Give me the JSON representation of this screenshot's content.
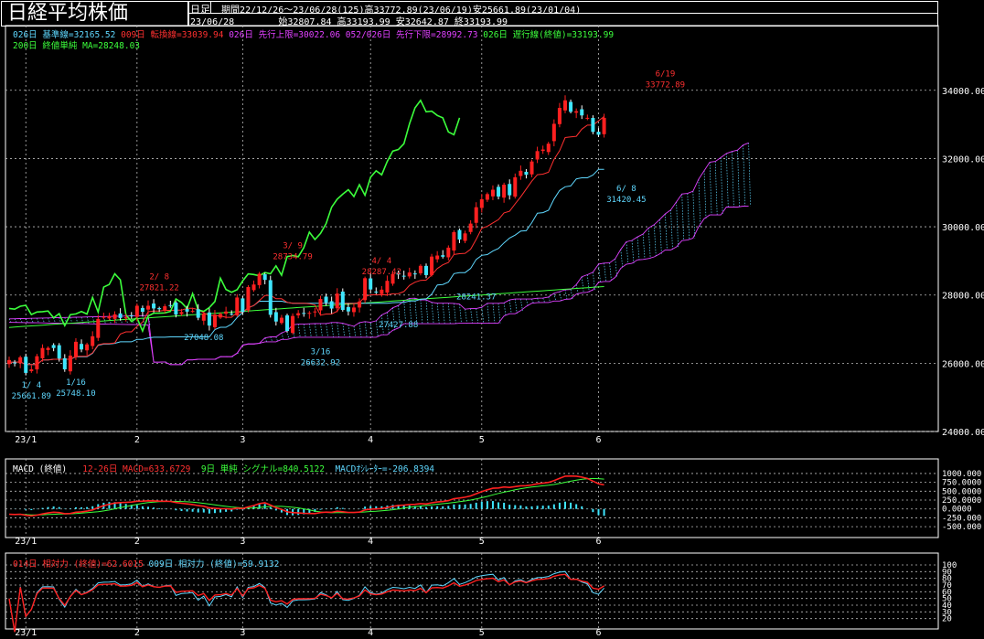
{
  "header": {
    "title": "日経平均株価",
    "timeframe": "日足",
    "period_info": "期間22/12/26～23/06/28(125)高33772.89(23/06/19)安25661.89(23/01/04)",
    "date": "23/06/28",
    "ohlc": "始32807.84 高33193.99 安32642.87 終33193.99"
  },
  "legend": {
    "kijun": "026日 基準線=32165.52",
    "tenkan": "009日 転換線=33039.94",
    "senkou_a": "026日 先行上限=30022.06",
    "senkou_b": "052/026日 先行下限=28992.73",
    "chikou": "026日 遅行線(終値)=33193.99",
    "ma200": "200日 終値単純 MA=28248.03"
  },
  "macd": {
    "title": "MACD (終値)",
    "macd_label": "12-26日 MACD=633.6729",
    "signal_label": "9日 単純 シグナル=840.5122",
    "osc_label": "MACDｵｼﾚｰﾀｰ=-206.8394"
  },
  "rsi": {
    "rsi14_label": "014日 相対力 (終値)=62.6015",
    "rsi9_label": "009日 相対力 (終値)=59.9132"
  },
  "chart_data": [
    {
      "type": "candlestick",
      "ylim": [
        24000,
        35200
      ],
      "y_ticks": [
        24000,
        26000,
        28000,
        30000,
        32000,
        34000
      ],
      "y_tick_labels": [
        "24000.00",
        "26000.00",
        "28000.00",
        "30000.00",
        "32000.00",
        "34000.00"
      ],
      "x_tick_labels": [
        "23/1",
        "2",
        "3",
        "4",
        "5",
        "6"
      ],
      "x_tick_index": [
        3,
        23,
        42,
        65,
        85,
        106
      ],
      "grid": true,
      "annotations": [
        {
          "date": "1/ 4",
          "value": "25661.89",
          "idx": 4,
          "price": 25661.89,
          "kind": "low"
        },
        {
          "date": "1/16",
          "value": "25748.10",
          "idx": 12,
          "price": 25748.1,
          "kind": "low"
        },
        {
          "date": "2/ 8",
          "value": "27821.22",
          "idx": 27,
          "price": 27821.22,
          "kind": "high"
        },
        {
          "date": "",
          "value": "27048.08",
          "idx": 35,
          "price": 27048.08,
          "kind": "low"
        },
        {
          "date": "3/ 9",
          "value": "28734.79",
          "idx": 51,
          "price": 28734.79,
          "kind": "high"
        },
        {
          "date": "3/16",
          "value": "26632.92",
          "idx": 56,
          "price": 26632.92,
          "kind": "low"
        },
        {
          "date": "4/ 4",
          "value": "28287.42",
          "idx": 67,
          "price": 28287.42,
          "kind": "high"
        },
        {
          "date": "",
          "value": "27427.88",
          "idx": 70,
          "price": 27427.88,
          "kind": "low"
        },
        {
          "date": "",
          "value": "28241.37",
          "idx": 84,
          "price": 28241.37,
          "kind": "low"
        },
        {
          "date": "6/ 8",
          "value": "31420.45",
          "idx": 111,
          "price": 31420.45,
          "kind": "low"
        },
        {
          "date": "6/19",
          "value": "33772.89",
          "idx": 118,
          "price": 33772.89,
          "kind": "high"
        }
      ],
      "candles_close": [
        26094,
        26000,
        26175,
        25717,
        25820,
        26206,
        26447,
        26449,
        26446,
        26138,
        25822,
        26224,
        26629,
        26405,
        26553,
        26791,
        27299,
        27363,
        27383,
        27433,
        27327,
        27346,
        27402,
        27685,
        27509,
        27685,
        27606,
        27584,
        27670,
        27697,
        27427,
        27501,
        27513,
        27532,
        27333,
        27453,
        27104,
        27423,
        27445,
        27516,
        27444,
        27927,
        27499,
        28233,
        28308,
        28623,
        28444,
        27420,
        27223,
        27334,
        26945,
        27385,
        27467,
        27466,
        27476,
        27518,
        27883,
        27782,
        27603,
        28041,
        27563,
        27518,
        27633,
        27809,
        28493,
        28163,
        28082,
        28157,
        28416,
        28620,
        28600,
        28564,
        28660,
        28623,
        28856,
        28583,
        29126,
        29157,
        29122,
        29388,
        29843,
        29626,
        29806,
        30093,
        30573,
        30808,
        30957,
        31086,
        30887,
        31233,
        30924,
        31451,
        31641,
        31524,
        31913,
        32217,
        32265,
        32434,
        33018,
        33485,
        33706,
        33370,
        33388,
        33264,
        33193,
        32781,
        32698,
        33193
      ],
      "kijun_start": 26450,
      "kijun_end": 32165.52,
      "tenkan_end": 33039.94,
      "senkou_a_end": 30022.06,
      "senkou_b_end": 28992.73,
      "ma200_end": 28248.03,
      "chikou_peak": 33706
    },
    {
      "type": "macd",
      "ylim": [
        -600,
        1050
      ],
      "y_tick_labels": [
        "1000.000",
        "750.0000",
        "500.0000",
        "250.0000",
        "0.0000",
        "-250.000",
        "-500.000"
      ],
      "y_ticks": [
        1000,
        750,
        500,
        250,
        0,
        -250,
        -500
      ],
      "macd_end": 633.6729,
      "signal_end": 840.5122,
      "osc_end": -206.8394
    },
    {
      "type": "rsi",
      "ylim": [
        10,
        100
      ],
      "y_ticks": [
        100,
        90,
        80,
        70,
        60,
        50,
        40,
        30,
        20
      ],
      "y_tick_labels": [
        "100",
        "90",
        "80",
        "70",
        "60",
        "50",
        "40",
        "30",
        "20"
      ],
      "rsi14_end": 62.6015,
      "rsi9_end": 59.9132
    }
  ]
}
